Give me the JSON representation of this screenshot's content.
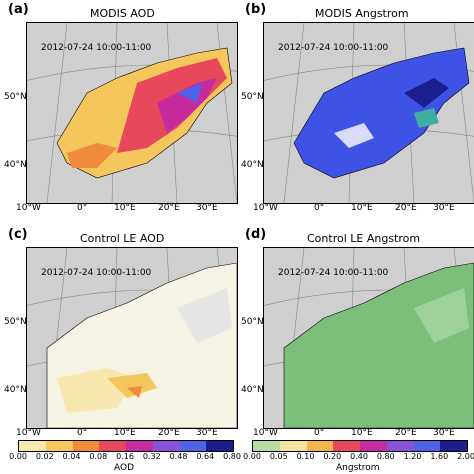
{
  "panels": [
    {
      "label": "(a)",
      "title": "MODIS AOD",
      "stamp": "2012-07-24 10:00-11:00",
      "lat": [
        "50°N",
        "40°N"
      ],
      "lon": [
        "10°W",
        "0°",
        "10°E",
        "20°E",
        "30°E"
      ]
    },
    {
      "label": "(b)",
      "title": "MODIS Angstrom",
      "stamp": "2012-07-24 10:00-11:00",
      "lat": [
        "50°N",
        "40°N"
      ],
      "lon": [
        "10°W",
        "0°",
        "10°E",
        "20°E",
        "30°E"
      ]
    },
    {
      "label": "(c)",
      "title": "Control LE AOD",
      "stamp": "2012-07-24 10:00-11:00",
      "lat": [
        "50°N",
        "40°N"
      ],
      "lon": [
        "10°W",
        "0°",
        "10°E",
        "20°E",
        "30°E"
      ]
    },
    {
      "label": "(d)",
      "title": "Control LE Angstrom",
      "stamp": "2012-07-24 10:00-11:00",
      "lat": [
        "50°N",
        "40°N"
      ],
      "lon": [
        "10°W",
        "0°",
        "10°E",
        "20°E",
        "30°E"
      ]
    }
  ],
  "colorbars": [
    {
      "title": "AOD",
      "ticks": [
        "0.00",
        "0.02",
        "0.04",
        "0.08",
        "0.16",
        "0.32",
        "0.48",
        "0.64",
        "0.80"
      ],
      "colors": [
        "#ffffff",
        "#f7e8b0",
        "#f5c65b",
        "#f08a3c",
        "#e8485c",
        "#c52a9f",
        "#8a52d6",
        "#4f63e6",
        "#1a1f8c"
      ]
    },
    {
      "title": "Angstrom",
      "ticks": [
        "0.00",
        "0.05",
        "0.10",
        "0.20",
        "0.40",
        "0.80",
        "1.20",
        "1.60",
        "2.00"
      ],
      "colors": [
        "#3f9a5a",
        "#b8dca8",
        "#f5e3a0",
        "#f2b64a",
        "#e8485c",
        "#c52a9f",
        "#8a52d6",
        "#4f63e6",
        "#1a1f8c"
      ]
    }
  ],
  "colors": {
    "ocean": "#cfcfcf",
    "aod_high": "#e8485c",
    "aod_mid": "#f5c65b",
    "angstrom_mid": "#3e52e6",
    "le_angstrom": "#7cbf7a"
  }
}
